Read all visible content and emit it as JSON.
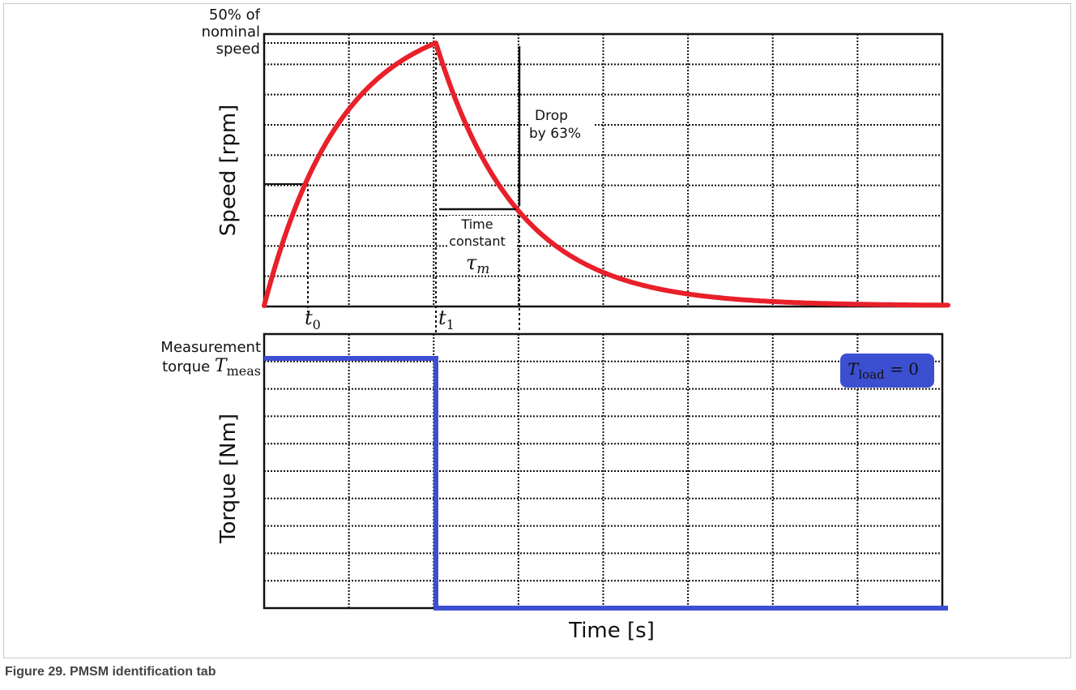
{
  "caption": "Figure 29.  PMSM identification tab",
  "speed_plot": {
    "ylabel": "Speed [rpm]",
    "peak_label_lines": [
      "50% of",
      "nominal",
      "speed"
    ],
    "drop_label_lines": [
      "Drop",
      "by 63%"
    ],
    "time_constant_lines": [
      "Time",
      "constant"
    ],
    "tau_symbol": "τ",
    "tau_subscript": "m",
    "t0_symbol": "t",
    "t0_subscript": "0",
    "t1_symbol": "t",
    "t1_subscript": "1"
  },
  "torque_plot": {
    "ylabel": "Torque [Nm]",
    "meas_label_line1": "Measurement",
    "meas_label_line2": "torque ",
    "meas_symbol": "T",
    "meas_subscript": "meas",
    "load_symbol": "T",
    "load_subscript": "load",
    "load_value": " = 0"
  },
  "xlabel": "Time [s]",
  "colors": {
    "speed_curve": "#e8202a",
    "torque_line": "#3d4fd1",
    "load_badge": "#3d4fd1",
    "grid": "#111111"
  }
}
